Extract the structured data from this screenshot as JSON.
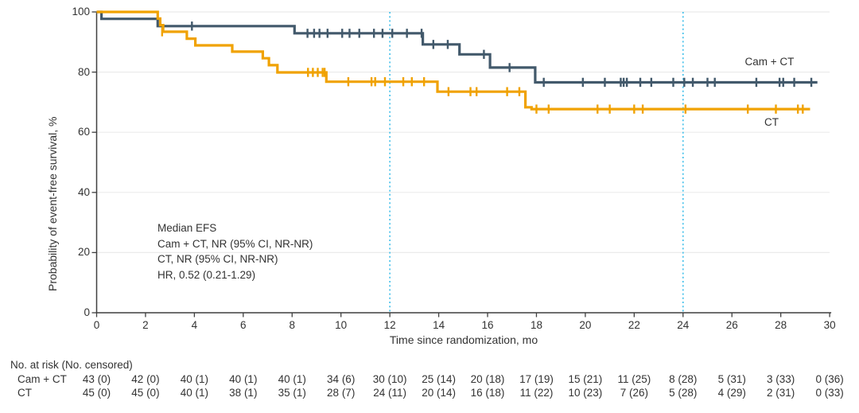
{
  "colors": {
    "camct": "#42596B",
    "ct": "#F0A202",
    "reference_line": "#3FBFEA",
    "grid": "#EBEBEB",
    "axis": "#3F3F3F",
    "text": "#333333",
    "background": "#FFFFFF"
  },
  "y_axis": {
    "label": "Probability of event-free survival, %",
    "ticks": [
      0,
      20,
      40,
      60,
      80,
      100
    ]
  },
  "x_axis": {
    "label": "Time since randomization, mo",
    "ticks": [
      0,
      2,
      4,
      6,
      8,
      10,
      12,
      14,
      16,
      18,
      20,
      22,
      24,
      26,
      28,
      30
    ]
  },
  "annotation": {
    "line1": "Median EFS",
    "line2": "Cam + CT, NR (95% CI, NR-NR)",
    "line3": "CT, NR (95% CI, NR-NR)",
    "line4": "HR, 0.52 (0.21-1.29)"
  },
  "curve_labels": {
    "camct": "Cam + CT",
    "ct": "CT"
  },
  "chart_data": {
    "type": "line",
    "subtype": "kaplan_meier_step",
    "title": "",
    "xlabel": "Time since randomization, mo",
    "ylabel": "Probability of event-free survival, %",
    "xlim": [
      0,
      30
    ],
    "ylim": [
      0,
      100
    ],
    "grid": "horizontal",
    "x_reference_lines": [
      12,
      24
    ],
    "series": [
      {
        "name": "Cam + CT",
        "color_key": "camct",
        "start_value": 100,
        "end_time": 29.5,
        "steps": [
          [
            0.2,
            97.7
          ],
          [
            2.5,
            95.3
          ],
          [
            8.1,
            92.9
          ],
          [
            13.35,
            89.2
          ],
          [
            14.85,
            85.9
          ],
          [
            16.1,
            81.5
          ],
          [
            17.95,
            76.6
          ]
        ],
        "censor_marks": [
          [
            3.9,
            95.3
          ],
          [
            8.63,
            92.9
          ],
          [
            8.9,
            92.9
          ],
          [
            9.12,
            92.9
          ],
          [
            9.45,
            92.9
          ],
          [
            10.05,
            92.9
          ],
          [
            10.35,
            92.9
          ],
          [
            10.75,
            92.9
          ],
          [
            11.35,
            92.9
          ],
          [
            11.7,
            92.9
          ],
          [
            12.1,
            92.9
          ],
          [
            12.7,
            92.9
          ],
          [
            13.3,
            92.9
          ],
          [
            13.78,
            89.2
          ],
          [
            14.37,
            89.2
          ],
          [
            15.85,
            85.9
          ],
          [
            16.9,
            81.5
          ],
          [
            18.3,
            76.6
          ],
          [
            19.9,
            76.6
          ],
          [
            20.8,
            76.6
          ],
          [
            21.45,
            76.6
          ],
          [
            21.57,
            76.6
          ],
          [
            21.7,
            76.6
          ],
          [
            22.25,
            76.6
          ],
          [
            22.7,
            76.6
          ],
          [
            23.6,
            76.6
          ],
          [
            24.05,
            76.6
          ],
          [
            24.4,
            76.6
          ],
          [
            25.0,
            76.6
          ],
          [
            25.3,
            76.6
          ],
          [
            27.0,
            76.6
          ],
          [
            27.95,
            76.6
          ],
          [
            28.1,
            76.6
          ],
          [
            28.55,
            76.6
          ],
          [
            29.25,
            76.6
          ]
        ]
      },
      {
        "name": "CT",
        "color_key": "ct",
        "start_value": 100,
        "end_time": 29.2,
        "steps": [
          [
            2.5,
            97.8
          ],
          [
            2.6,
            95.6
          ],
          [
            2.72,
            93.4
          ],
          [
            3.69,
            91.1
          ],
          [
            4.04,
            88.9
          ],
          [
            5.55,
            86.8
          ],
          [
            6.8,
            84.6
          ],
          [
            7.05,
            82.3
          ],
          [
            7.4,
            79.9
          ],
          [
            9.4,
            76.8
          ],
          [
            13.95,
            73.5
          ],
          [
            17.55,
            68.3
          ],
          [
            17.8,
            67.7
          ]
        ],
        "censor_marks": [
          [
            2.68,
            93.4
          ],
          [
            8.65,
            79.9
          ],
          [
            8.85,
            79.9
          ],
          [
            9.05,
            79.9
          ],
          [
            9.25,
            79.9
          ],
          [
            9.33,
            79.9
          ],
          [
            10.3,
            76.8
          ],
          [
            11.25,
            76.8
          ],
          [
            11.4,
            76.8
          ],
          [
            11.8,
            76.8
          ],
          [
            12.55,
            76.8
          ],
          [
            12.9,
            76.8
          ],
          [
            13.4,
            76.8
          ],
          [
            14.4,
            73.5
          ],
          [
            15.3,
            73.5
          ],
          [
            15.55,
            73.5
          ],
          [
            16.8,
            73.5
          ],
          [
            17.3,
            73.5
          ],
          [
            18.0,
            67.7
          ],
          [
            18.5,
            67.7
          ],
          [
            20.5,
            67.7
          ],
          [
            21.0,
            67.7
          ],
          [
            22.0,
            67.7
          ],
          [
            22.35,
            67.7
          ],
          [
            24.1,
            67.7
          ],
          [
            26.65,
            67.7
          ],
          [
            27.8,
            67.7
          ],
          [
            28.7,
            67.7
          ],
          [
            28.9,
            67.7
          ]
        ]
      }
    ]
  },
  "risk_table": {
    "header": "No. at risk (No. censored)",
    "times": [
      0,
      2,
      4,
      6,
      8,
      10,
      12,
      14,
      16,
      18,
      20,
      22,
      24,
      26,
      28,
      30
    ],
    "rows": [
      {
        "label": "Cam + CT",
        "values": [
          "43 (0)",
          "42 (0)",
          "40 (1)",
          "40 (1)",
          "40 (1)",
          "34 (6)",
          "30 (10)",
          "25 (14)",
          "20 (18)",
          "17 (19)",
          "15 (21)",
          "11 (25)",
          "8 (28)",
          "5 (31)",
          "3 (33)",
          "0 (36)"
        ]
      },
      {
        "label": "CT",
        "values": [
          "45 (0)",
          "45 (0)",
          "40 (1)",
          "38 (1)",
          "35 (1)",
          "28 (7)",
          "24 (11)",
          "20 (14)",
          "16 (18)",
          "11 (22)",
          "10 (23)",
          "7 (26)",
          "5 (28)",
          "4 (29)",
          "2 (31)",
          "0 (33)"
        ]
      }
    ]
  }
}
